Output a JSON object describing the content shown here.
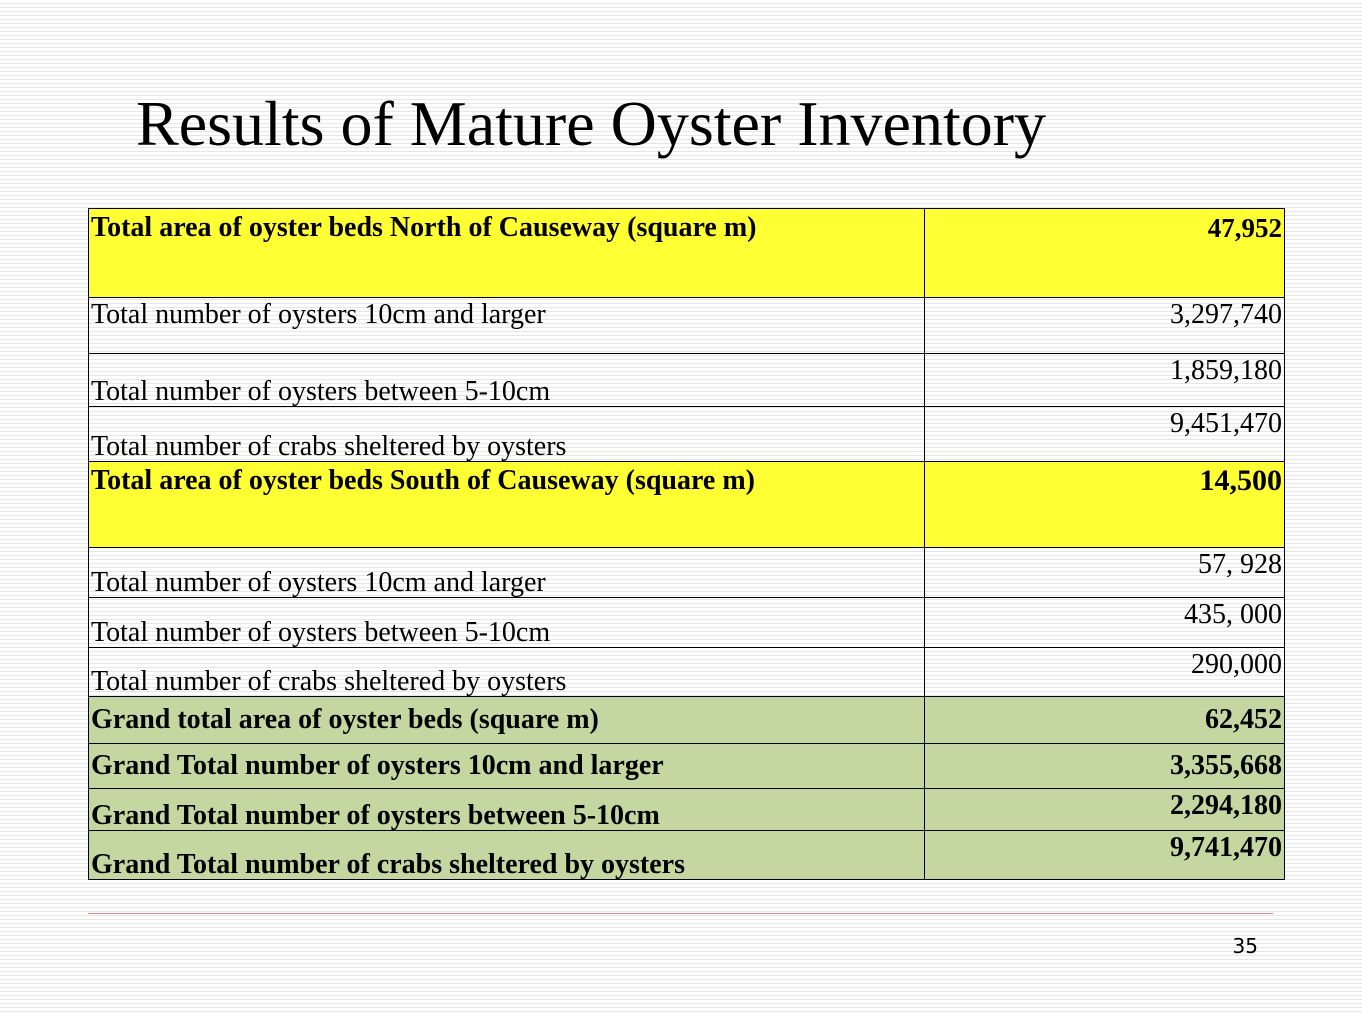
{
  "slide": {
    "title": "Results of Mature Oyster Inventory",
    "page_number": "35"
  },
  "colors": {
    "highlight_yellow": "#ffff33",
    "highlight_green": "#c4d7a0",
    "footer_rule": "#e08a8a"
  },
  "table": {
    "rows": [
      {
        "label": "Total area of oyster beds North of Causeway (square m)",
        "value": "47,952"
      },
      {
        "label": "Total number of oysters 10cm and larger",
        "value": "3,297,740"
      },
      {
        "label": "Total number of oysters between 5-10cm",
        "value": "1,859,180"
      },
      {
        "label": "Total number of crabs sheltered by oysters",
        "value": "9,451,470"
      },
      {
        "label": "Total area of oyster beds South of Causeway (square m)",
        "value": "14,500"
      },
      {
        "label": "Total number of oysters 10cm and larger",
        "value": "57, 928"
      },
      {
        "label": "Total number of oysters between 5-10cm",
        "value": "435, 000"
      },
      {
        "label": "Total number of crabs sheltered by oysters",
        "value": "290,000"
      },
      {
        "label": "Grand total area of oyster beds (square m)",
        "value": "62,452"
      },
      {
        "label": "Grand Total number of oysters 10cm and larger",
        "value": "3,355,668"
      },
      {
        "label": "Grand Total number of oysters between 5-10cm",
        "value": "2,294,180"
      },
      {
        "label": "Grand Total number of crabs sheltered by oysters",
        "value": "9,741,470"
      }
    ]
  }
}
